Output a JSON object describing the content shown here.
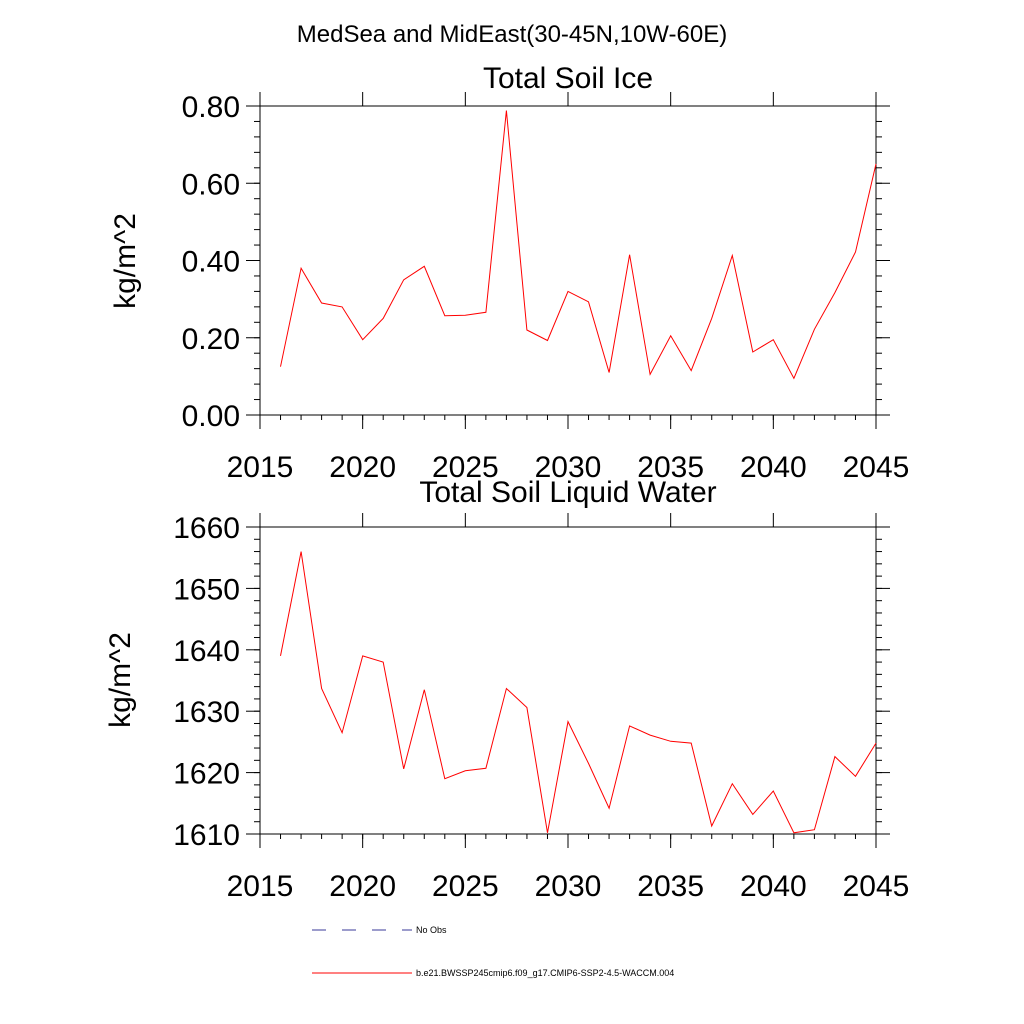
{
  "figure": {
    "title": "MedSea and MidEast(30-45N,10W-60E)"
  },
  "chart_data": [
    {
      "type": "line",
      "title": "Total Soil Ice",
      "xlabel": "",
      "ylabel": "kg/m^2",
      "xlim": [
        2015,
        2045
      ],
      "ylim": [
        0,
        0.8
      ],
      "x_ticks": [
        2015,
        2020,
        2025,
        2030,
        2035,
        2040,
        2045
      ],
      "x_tick_labels": [
        "2015",
        "2020",
        "2025",
        "2030",
        "2035",
        "2040",
        "2045"
      ],
      "y_ticks": [
        0,
        0.2,
        0.4,
        0.6,
        0.8
      ],
      "y_tick_labels": [
        "0.00",
        "0.20",
        "0.40",
        "0.60",
        "0.80"
      ],
      "y_minor_step": 0.04,
      "x_minor_step": 1,
      "grid": false,
      "series": [
        {
          "name": "b.e21.BWSSP245cmip6.f09_g17.CMIP6-SSP2-4.5-WACCM.004",
          "color": "#ff0000",
          "x": [
            2016,
            2017,
            2018,
            2019,
            2020,
            2021,
            2022,
            2023,
            2024,
            2025,
            2026,
            2027,
            2028,
            2029,
            2030,
            2031,
            2032,
            2033,
            2034,
            2035,
            2036,
            2037,
            2038,
            2039,
            2040,
            2041,
            2042,
            2043,
            2044,
            2045
          ],
          "values": [
            0.125,
            0.38,
            0.29,
            0.28,
            0.195,
            0.25,
            0.35,
            0.385,
            0.257,
            0.258,
            0.266,
            0.788,
            0.22,
            0.193,
            0.32,
            0.293,
            0.11,
            0.415,
            0.105,
            0.205,
            0.115,
            0.25,
            0.413,
            0.163,
            0.195,
            0.095,
            0.222,
            0.317,
            0.422,
            0.65
          ]
        }
      ]
    },
    {
      "type": "line",
      "title": "Total Soil Liquid Water",
      "xlabel": "",
      "ylabel": "kg/m^2",
      "xlim": [
        2015,
        2045
      ],
      "ylim": [
        1610,
        1660
      ],
      "x_ticks": [
        2015,
        2020,
        2025,
        2030,
        2035,
        2040,
        2045
      ],
      "x_tick_labels": [
        "2015",
        "2020",
        "2025",
        "2030",
        "2035",
        "2040",
        "2045"
      ],
      "y_ticks": [
        1610,
        1620,
        1630,
        1640,
        1650,
        1660
      ],
      "y_tick_labels": [
        "1610",
        "1620",
        "1630",
        "1640",
        "1650",
        "1660"
      ],
      "y_minor_step": 2,
      "x_minor_step": 1,
      "grid": false,
      "series": [
        {
          "name": "b.e21.BWSSP245cmip6.f09_g17.CMIP6-SSP2-4.5-WACCM.004",
          "color": "#ff0000",
          "x": [
            2016,
            2017,
            2018,
            2019,
            2020,
            2021,
            2022,
            2023,
            2024,
            2025,
            2026,
            2027,
            2028,
            2029,
            2030,
            2031,
            2032,
            2033,
            2034,
            2035,
            2036,
            2037,
            2038,
            2039,
            2040,
            2041,
            2042,
            2043,
            2044,
            2045
          ],
          "values": [
            1639,
            1656,
            1633.7,
            1626.5,
            1639,
            1638,
            1620.6,
            1633.5,
            1619,
            1620.3,
            1620.7,
            1633.7,
            1630.6,
            1610.2,
            1628.3,
            1621.5,
            1614.2,
            1627.6,
            1626.1,
            1625.1,
            1624.8,
            1611.3,
            1618.2,
            1613.2,
            1617,
            1610.2,
            1610.7,
            1622.6,
            1619.4,
            1624.8
          ]
        }
      ]
    }
  ],
  "legend": {
    "placement": "bottom-center",
    "items": [
      {
        "label": "No Obs",
        "style": "dashed",
        "color": "#3a3a9a"
      },
      {
        "label": "b.e21.BWSSP245cmip6.f09_g17.CMIP6-SSP2-4.5-WACCM.004",
        "style": "solid",
        "color": "#ff0000"
      }
    ]
  }
}
